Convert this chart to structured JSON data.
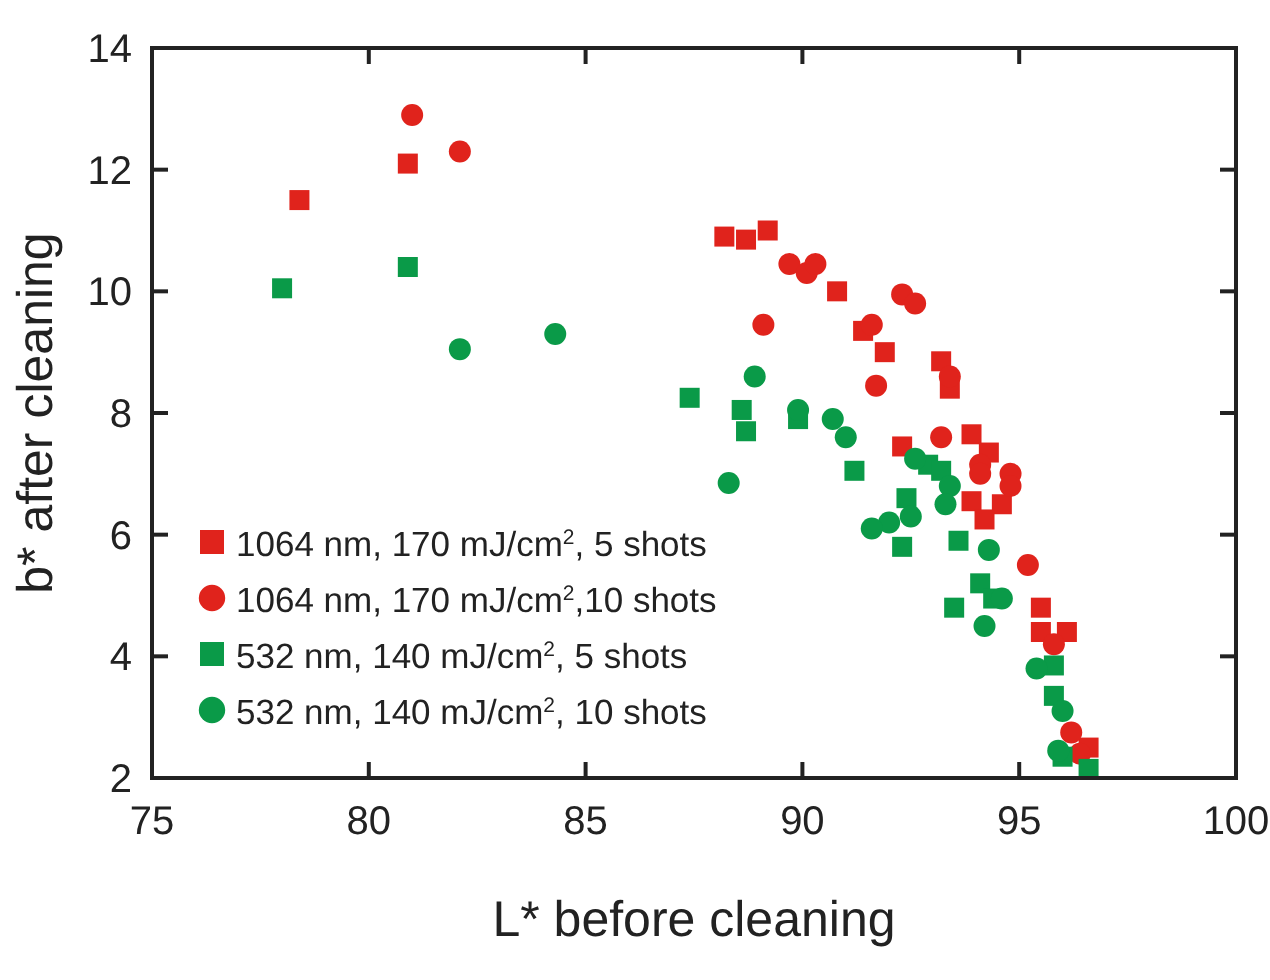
{
  "chart_data": {
    "type": "scatter",
    "xlabel": "L* before cleaning",
    "ylabel": "b* after cleaning",
    "xlim": [
      75,
      100
    ],
    "ylim": [
      2,
      14
    ],
    "xticks": [
      75,
      80,
      85,
      90,
      95,
      100
    ],
    "yticks": [
      2,
      4,
      6,
      8,
      10,
      12,
      14
    ],
    "grid": false,
    "legend": "bottom left",
    "series": [
      {
        "name": "1064 nm, 170 mJ/cm$^{2}$, 5 shots",
        "color": "#e0231c",
        "marker": "square",
        "x": [
          78.4,
          80.9,
          88.2,
          88.7,
          89.2,
          90.8,
          91.4,
          91.9,
          93.2,
          93.4,
          92.3,
          93.9,
          94.3,
          93.9,
          94.6,
          94.2,
          95.5,
          95.5,
          96.1,
          96.6
        ],
        "values": [
          11.5,
          12.1,
          10.9,
          10.85,
          11.0,
          10.0,
          9.35,
          9.0,
          8.85,
          8.4,
          7.45,
          7.65,
          7.35,
          6.55,
          6.5,
          6.25,
          4.8,
          4.4,
          4.4,
          2.5
        ]
      },
      {
        "name": "1064 nm, 170 mJ/cm$^{2}$,10 shots",
        "color": "#e0231c",
        "marker": "circle",
        "x": [
          81.0,
          82.1,
          89.7,
          90.1,
          90.3,
          89.1,
          91.6,
          92.3,
          92.6,
          93.4,
          91.7,
          93.2,
          94.1,
          94.1,
          94.8,
          94.8,
          95.2,
          95.8,
          96.2,
          96.4
        ],
        "values": [
          12.9,
          12.3,
          10.45,
          10.3,
          10.45,
          9.45,
          9.45,
          9.95,
          9.8,
          8.6,
          8.45,
          7.6,
          7.15,
          7.0,
          7.0,
          6.8,
          5.5,
          4.2,
          2.75,
          2.4
        ]
      },
      {
        "name": "532 nm, 140 mJ/cm$^{2}$, 5 shots",
        "color": "#0a9a48",
        "marker": "square",
        "x": [
          78.0,
          80.9,
          87.4,
          88.6,
          88.7,
          89.9,
          91.2,
          92.4,
          92.3,
          93.6,
          92.9,
          93.2,
          94.1,
          93.5,
          94.4,
          95.8,
          95.8,
          96.0,
          96.6
        ],
        "values": [
          10.05,
          10.4,
          8.25,
          8.05,
          7.7,
          7.9,
          7.05,
          6.6,
          5.8,
          5.9,
          7.15,
          7.05,
          5.2,
          4.8,
          4.95,
          3.85,
          3.35,
          2.35,
          2.15
        ]
      },
      {
        "name": "532 nm, 140 mJ/cm$^{2}$, 10 shots",
        "color": "#0a9a48",
        "marker": "circle",
        "x": [
          82.1,
          84.3,
          88.9,
          88.3,
          89.9,
          90.7,
          91.0,
          92.6,
          93.4,
          93.3,
          92.5,
          92.0,
          91.6,
          94.3,
          94.6,
          94.2,
          95.4,
          96.0,
          95.9
        ],
        "values": [
          9.05,
          9.3,
          8.6,
          6.85,
          8.05,
          7.9,
          7.6,
          7.25,
          6.8,
          6.5,
          6.3,
          6.2,
          6.1,
          5.75,
          4.95,
          4.5,
          3.8,
          3.1,
          2.45
        ]
      }
    ]
  }
}
